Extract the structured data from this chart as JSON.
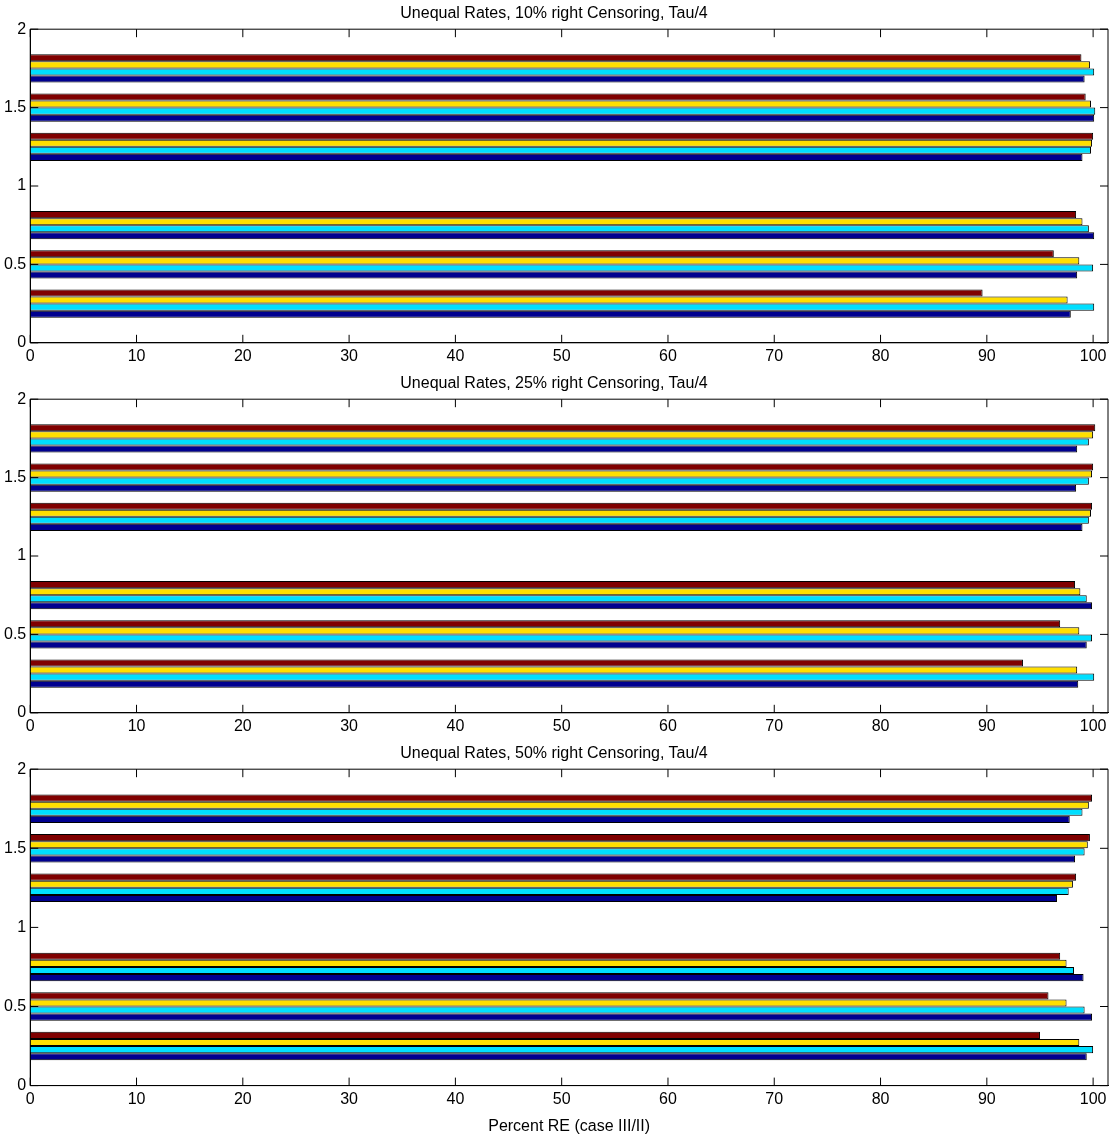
{
  "chart_data": [
    {
      "type": "bar",
      "orientation": "horizontal",
      "title": "Unequal Rates, 10% right Censoring, Tau/4",
      "x": [
        0.25,
        0.5,
        0.75,
        1.25,
        1.5,
        1.75
      ],
      "series": [
        {
          "color": "#00008f",
          "values": [
            97.9,
            98.5,
            100.1,
            99.0,
            100.1,
            99.2
          ]
        },
        {
          "color": "#00dfff",
          "values": [
            100.1,
            100.0,
            99.6,
            99.8,
            100.2,
            100.1
          ]
        },
        {
          "color": "#ffdf00",
          "values": [
            97.6,
            98.7,
            99.0,
            99.9,
            99.8,
            99.7
          ]
        },
        {
          "color": "#800000",
          "values": [
            89.6,
            96.3,
            98.4,
            100.0,
            99.3,
            98.9
          ]
        }
      ],
      "xlim": [
        0,
        101.4
      ],
      "xticks": [
        0,
        10,
        20,
        30,
        40,
        50,
        60,
        70,
        80,
        90,
        100
      ],
      "ylim": [
        0,
        2
      ],
      "yticks": [
        0,
        0.5,
        1,
        1.5,
        2
      ]
    },
    {
      "type": "bar",
      "orientation": "horizontal",
      "title": "Unequal Rates, 25% right Censoring, Tau/4",
      "x": [
        0.25,
        0.5,
        0.75,
        1.25,
        1.5,
        1.75
      ],
      "series": [
        {
          "color": "#00008f",
          "values": [
            98.6,
            99.4,
            99.9,
            99.0,
            98.4,
            98.5
          ]
        },
        {
          "color": "#00dfff",
          "values": [
            100.1,
            99.9,
            99.4,
            99.6,
            99.6,
            99.6
          ]
        },
        {
          "color": "#ffdf00",
          "values": [
            98.5,
            98.7,
            98.8,
            99.8,
            99.9,
            100.0
          ]
        },
        {
          "color": "#800000",
          "values": [
            93.4,
            96.9,
            98.3,
            99.9,
            100.0,
            100.2
          ]
        }
      ],
      "xlim": [
        0,
        101.4
      ],
      "xticks": [
        0,
        10,
        20,
        30,
        40,
        50,
        60,
        70,
        80,
        90,
        100
      ],
      "ylim": [
        0,
        2
      ],
      "yticks": [
        0,
        0.5,
        1,
        1.5,
        2
      ]
    },
    {
      "type": "bar",
      "orientation": "horizontal",
      "title": "Unequal Rates, 50% right Censoring, Tau/4",
      "xlabel": "Percent RE (case III/II)",
      "x": [
        0.25,
        0.5,
        0.75,
        1.25,
        1.5,
        1.75
      ],
      "series": [
        {
          "color": "#00008f",
          "values": [
            99.4,
            99.9,
            99.1,
            96.6,
            98.3,
            97.8
          ]
        },
        {
          "color": "#00dfff",
          "values": [
            100.0,
            99.2,
            98.2,
            97.7,
            99.2,
            99.0
          ]
        },
        {
          "color": "#ffdf00",
          "values": [
            98.7,
            97.5,
            97.5,
            98.1,
            99.5,
            99.6
          ]
        },
        {
          "color": "#800000",
          "values": [
            95.0,
            95.8,
            96.9,
            98.4,
            99.7,
            99.9
          ]
        }
      ],
      "xlim": [
        0,
        101.4
      ],
      "xticks": [
        0,
        10,
        20,
        30,
        40,
        50,
        60,
        70,
        80,
        90,
        100
      ],
      "ylim": [
        0,
        2
      ],
      "yticks": [
        0,
        0.5,
        1,
        1.5,
        2
      ]
    }
  ]
}
